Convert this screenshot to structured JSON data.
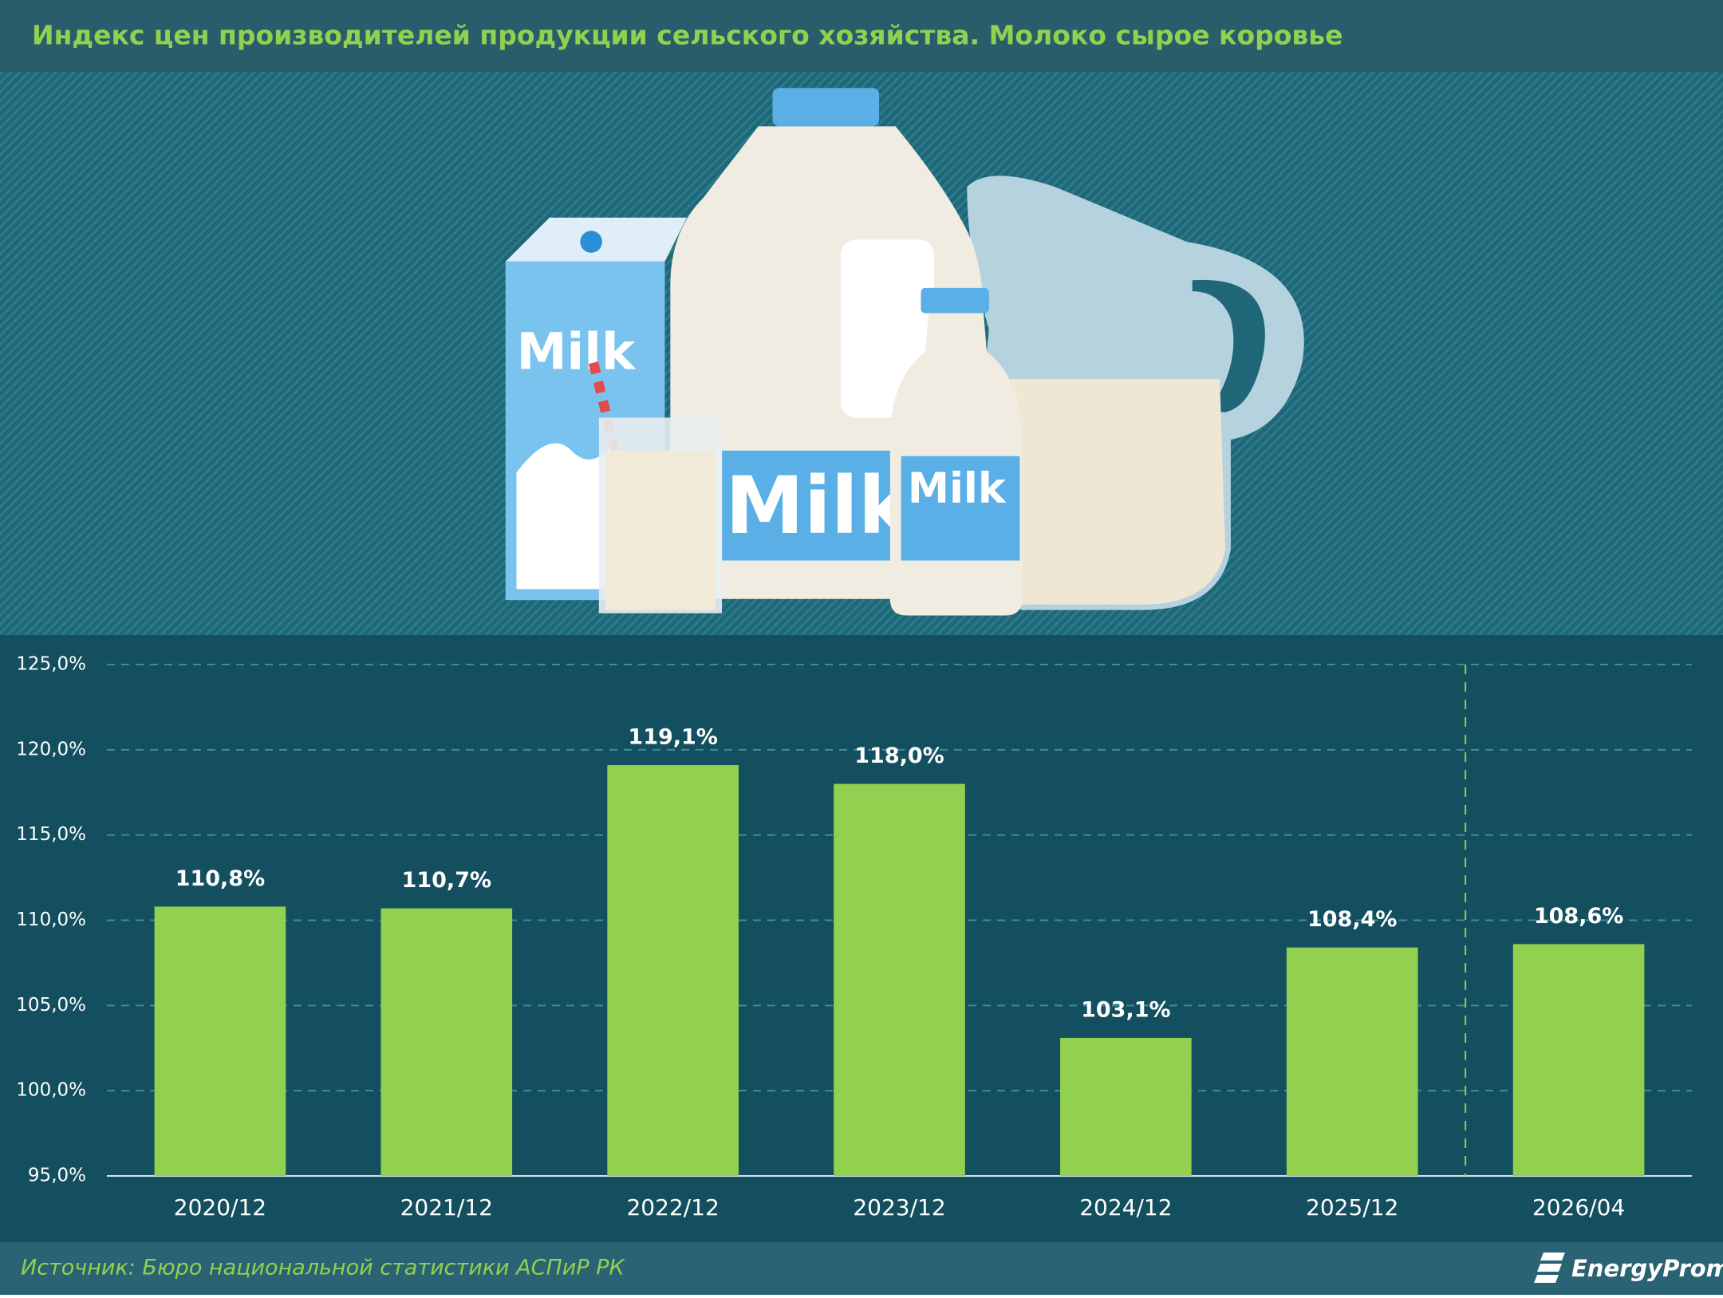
{
  "chart_data": {
    "type": "bar",
    "title": "Индекс цен производителей продукции сельского хозяйства. Молоко сырое коровье",
    "categories": [
      "2020/12",
      "2021/12",
      "2022/12",
      "2023/12",
      "2024/12",
      "2025/12",
      "2026/04"
    ],
    "values": [
      110.8,
      110.7,
      119.1,
      118.0,
      103.1,
      108.4,
      108.6
    ],
    "value_labels": [
      "110,8%",
      "110,7%",
      "119,1%",
      "118,0%",
      "103,1%",
      "108,4%",
      "108,6%"
    ],
    "color": "#92d050",
    "ylim": [
      95,
      125
    ],
    "yticks": [
      {
        "value": 95,
        "label": "95,0%"
      },
      {
        "value": 100,
        "label": "100,0%"
      },
      {
        "value": 105,
        "label": "105,0%"
      },
      {
        "value": 110,
        "label": "110,0%"
      },
      {
        "value": 115,
        "label": "115,0%"
      },
      {
        "value": 120,
        "label": "120,0%"
      },
      {
        "value": 125,
        "label": "125,0%"
      }
    ],
    "grid": true,
    "source": "Источник: Бюро национальной статистики АСПиР РК"
  },
  "brand": "EnergyProm",
  "illustration": {
    "labels": [
      "Milk",
      "Milk",
      "Milk"
    ]
  }
}
